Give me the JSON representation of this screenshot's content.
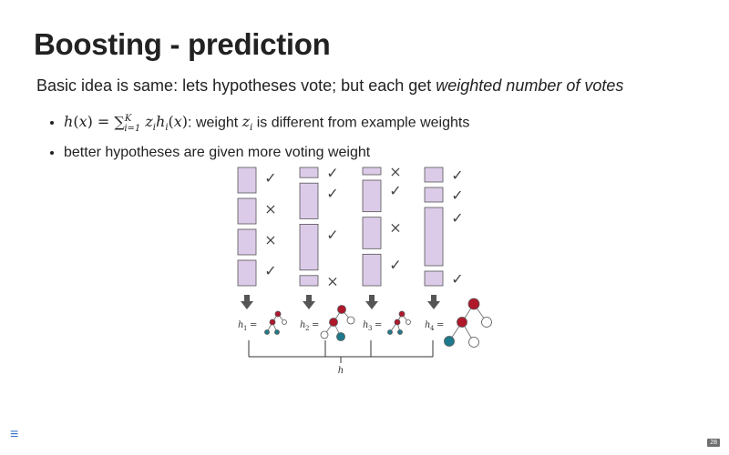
{
  "slide": {
    "title": "Boosting - prediction",
    "intro": "Basic idea is same: lets hypotheses vote; but each get ",
    "intro_em": "weighted number of votes",
    "bullet1_suffix": ": weight ",
    "bullet1_tail": " is different from example weights",
    "bullet2": "better hypotheses are given more voting weight",
    "page_number": "28"
  },
  "figure": {
    "box_color": "#dccbe8",
    "node_red": "#b0172b",
    "node_teal": "#1d7a8c",
    "check_mark": "✓",
    "cross_mark": "×",
    "learners": [
      {
        "label": "h",
        "index": "1",
        "marks": [
          "check",
          "cross",
          "cross",
          "check"
        ],
        "weights": [
          1,
          1,
          1,
          1
        ]
      },
      {
        "label": "h",
        "index": "2",
        "marks": [
          "check",
          "check",
          "check",
          "cross"
        ],
        "weights": [
          0.4,
          1.4,
          1.8,
          0.4
        ]
      },
      {
        "label": "h",
        "index": "3",
        "marks": [
          "cross",
          "check",
          "cross",
          "check"
        ],
        "weights": [
          0.3,
          1.3,
          1.3,
          1.3
        ]
      },
      {
        "label": "h",
        "index": "4",
        "marks": [
          "check",
          "check",
          "check",
          "check"
        ],
        "weights": [
          0.6,
          0.6,
          2.4,
          0.6
        ]
      }
    ],
    "combined_label": "h"
  },
  "icons": {
    "menu": "menu-icon"
  }
}
